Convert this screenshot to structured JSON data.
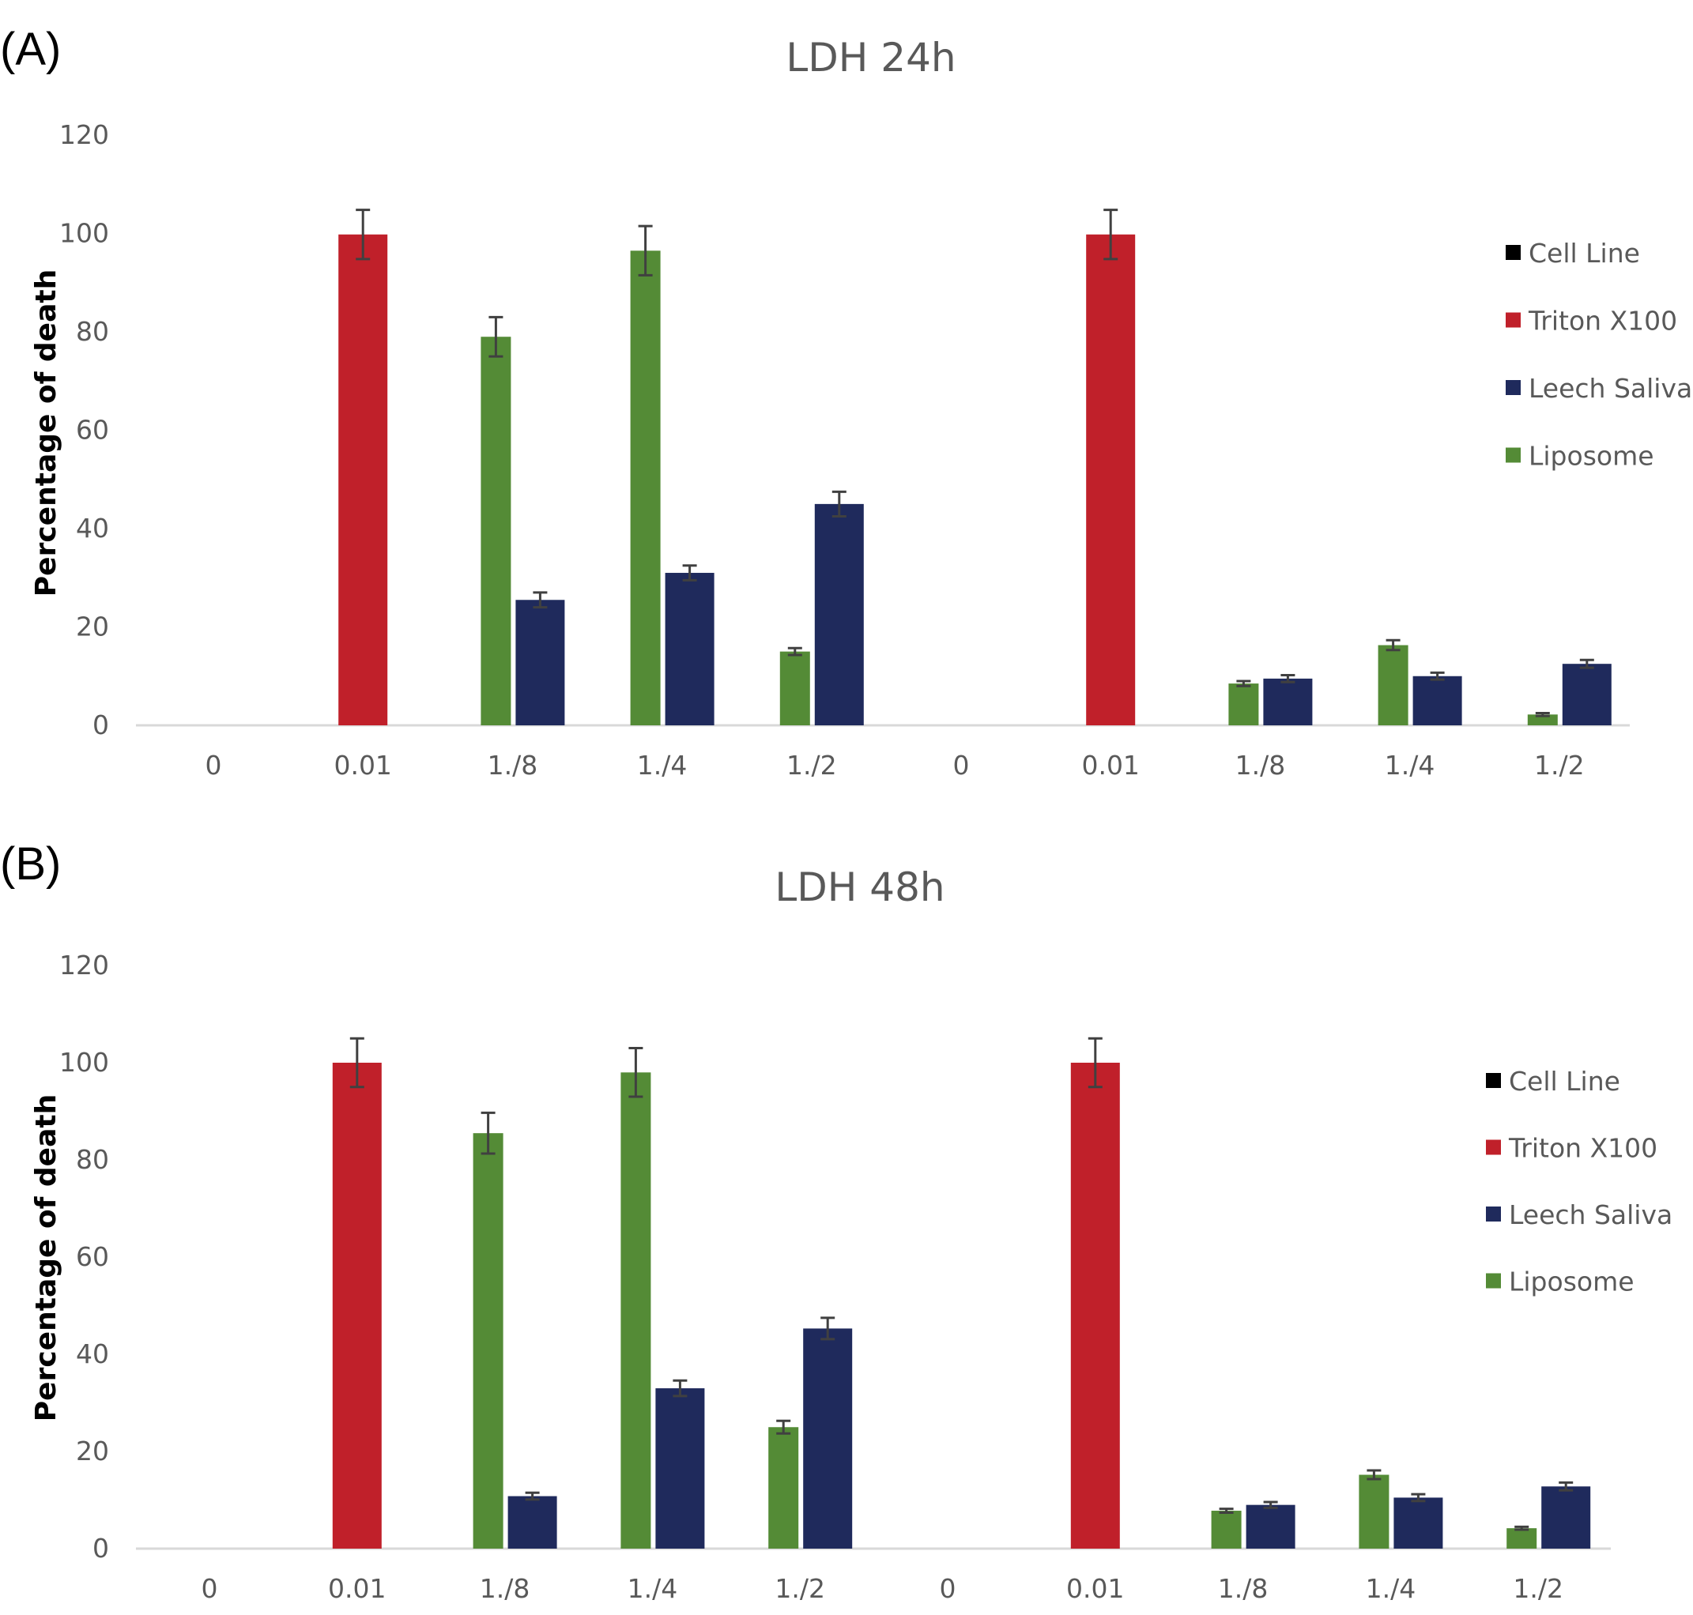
{
  "chart_data": [
    {
      "type": "bar",
      "panel_label": "(A)",
      "title": "LDH 24h",
      "xlabel": "",
      "ylabel": "Percentage of death",
      "ylim": [
        0,
        120
      ],
      "yticks": [
        0,
        20,
        40,
        60,
        80,
        100,
        120
      ],
      "categories": [
        "0",
        "0.01",
        "1./8",
        "1./4",
        "1./2",
        "0",
        "0.01",
        "1./8",
        "1./4",
        "1./2"
      ],
      "legend_position": "right",
      "series": [
        {
          "name": "Cell Line",
          "color": "#000000",
          "values": [
            0,
            0,
            0,
            0,
            0,
            0,
            0,
            0,
            0,
            0
          ],
          "errors": [
            0,
            0,
            0,
            0,
            0,
            0,
            0,
            0,
            0,
            0
          ]
        },
        {
          "name": "Triton X100",
          "color": "#c0202a",
          "values": [
            0,
            99.8,
            0,
            0,
            0,
            0,
            99.8,
            0,
            0,
            0
          ],
          "errors": [
            0,
            5,
            0,
            0,
            0,
            0,
            5,
            0,
            0,
            0
          ]
        },
        {
          "name": "Leech Saliva",
          "color": "#1f2a5c",
          "values": [
            0,
            0,
            25.5,
            31,
            45,
            0,
            0,
            9.5,
            10,
            12.5
          ],
          "errors": [
            0,
            0,
            1.5,
            1.5,
            2.5,
            0,
            0,
            0.7,
            0.7,
            0.8
          ]
        },
        {
          "name": "Liposome",
          "color": "#548b36",
          "values": [
            0,
            0,
            79,
            96.5,
            15,
            0,
            0,
            8.5,
            16.3,
            2.2
          ],
          "errors": [
            0,
            0,
            4,
            5,
            0.7,
            0,
            0,
            0.5,
            1,
            0.3
          ]
        }
      ]
    },
    {
      "type": "bar",
      "panel_label": "(B)",
      "title": "LDH 48h",
      "xlabel": "",
      "ylabel": "Percentage of death",
      "ylim": [
        0,
        120
      ],
      "yticks": [
        0,
        20,
        40,
        60,
        80,
        100,
        120
      ],
      "categories": [
        "0",
        "0.01",
        "1./8",
        "1./4",
        "1./2",
        "0",
        "0.01",
        "1./8",
        "1./4",
        "1./2"
      ],
      "legend_position": "right",
      "series": [
        {
          "name": "Cell Line",
          "color": "#000000",
          "values": [
            0,
            0,
            0,
            0,
            0,
            0,
            0,
            0,
            0,
            0
          ],
          "errors": [
            0,
            0,
            0,
            0,
            0,
            0,
            0,
            0,
            0,
            0
          ]
        },
        {
          "name": "Triton X100",
          "color": "#c0202a",
          "values": [
            0,
            100,
            0,
            0,
            0,
            0,
            100,
            0,
            0,
            0
          ],
          "errors": [
            0,
            5,
            0,
            0,
            0,
            0,
            5,
            0,
            0,
            0
          ]
        },
        {
          "name": "Leech Saliva",
          "color": "#1f2a5c",
          "values": [
            0,
            0,
            10.8,
            33,
            45.3,
            0,
            0,
            9,
            10.5,
            12.8
          ],
          "errors": [
            0,
            0,
            0.7,
            1.6,
            2.2,
            0,
            0,
            0.6,
            0.7,
            0.8
          ]
        },
        {
          "name": "Liposome",
          "color": "#548b36",
          "values": [
            0,
            0,
            85.5,
            98,
            25,
            0,
            0,
            7.8,
            15.2,
            4.2
          ],
          "errors": [
            0,
            0,
            4.2,
            5,
            1.3,
            0,
            0,
            0.4,
            0.9,
            0.3
          ]
        }
      ]
    }
  ]
}
